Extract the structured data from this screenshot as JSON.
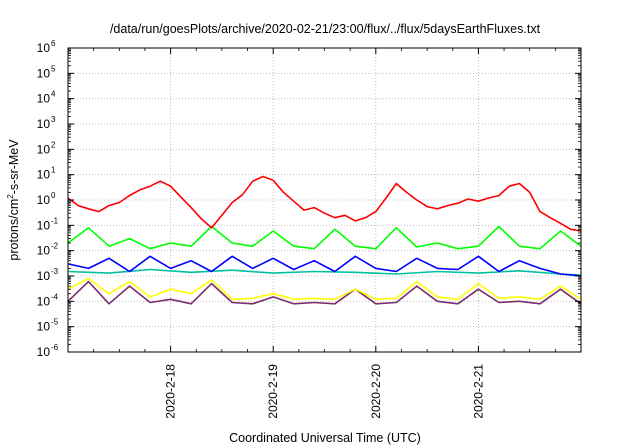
{
  "chart_data": {
    "type": "line",
    "title": "/data/run/goesPlots/archive/2020-02-21/23:00/flux/../flux/5daysEarthFluxes.txt",
    "xlabel": "Coordinated Universal Time (UTC)",
    "ylabel": {
      "prefix": "protons/cm",
      "sup": "2",
      "suffix": "-s-sr-MeV"
    },
    "yscale": "log",
    "ylim": [
      1e-06,
      1000000.0
    ],
    "xlim": [
      "2020-02-17 00:00",
      "2020-02-22 00:00"
    ],
    "grid": true,
    "x_ticks": [
      "2020-2-18",
      "2020-2-19",
      "2020-2-20",
      "2020-2-21"
    ],
    "y_ticks": [
      {
        "base": "10",
        "exp": "-6"
      },
      {
        "base": "10",
        "exp": "-5"
      },
      {
        "base": "10",
        "exp": "-4"
      },
      {
        "base": "10",
        "exp": "-3"
      },
      {
        "base": "10",
        "exp": "-2"
      },
      {
        "base": "10",
        "exp": "-1"
      },
      {
        "base": "10",
        "exp": "0"
      },
      {
        "base": "10",
        "exp": "1"
      },
      {
        "base": "10",
        "exp": "2"
      },
      {
        "base": "10",
        "exp": "3"
      },
      {
        "base": "10",
        "exp": "4"
      },
      {
        "base": "10",
        "exp": "5"
      },
      {
        "base": "10",
        "exp": "6"
      }
    ],
    "series": [
      {
        "color": "#ff0000",
        "x": [
          "2020-02-17 00:00",
          "2020-02-17 02:24",
          "2020-02-17 04:48",
          "2020-02-17 07:12",
          "2020-02-17 09:36",
          "2020-02-17 12:00",
          "2020-02-17 14:24",
          "2020-02-17 16:48",
          "2020-02-17 19:12",
          "2020-02-17 21:36",
          "2020-02-18 00:00",
          "2020-02-18 02:24",
          "2020-02-18 04:48",
          "2020-02-18 07:12",
          "2020-02-18 09:36",
          "2020-02-18 12:00",
          "2020-02-18 14:24",
          "2020-02-18 16:48",
          "2020-02-18 19:12",
          "2020-02-18 21:36",
          "2020-02-19 00:00",
          "2020-02-19 02:24",
          "2020-02-19 04:48",
          "2020-02-19 07:12",
          "2020-02-19 09:36",
          "2020-02-19 12:00",
          "2020-02-19 14:24",
          "2020-02-19 16:48",
          "2020-02-19 19:12",
          "2020-02-19 21:36",
          "2020-02-20 00:00",
          "2020-02-20 02:24",
          "2020-02-20 04:48",
          "2020-02-20 07:12",
          "2020-02-20 09:36",
          "2020-02-20 12:00",
          "2020-02-20 14:24",
          "2020-02-20 16:48",
          "2020-02-20 19:12",
          "2020-02-20 21:36",
          "2020-02-21 00:00",
          "2020-02-21 02:24",
          "2020-02-21 04:48",
          "2020-02-21 07:12",
          "2020-02-21 09:36",
          "2020-02-21 12:00",
          "2020-02-21 14:24",
          "2020-02-21 16:48",
          "2020-02-21 19:12",
          "2020-02-21 21:36",
          "2020-02-22 00:00"
        ],
        "y": [
          1.2,
          0.6,
          0.45,
          0.35,
          0.6,
          0.8,
          1.5,
          2.5,
          3.5,
          5.5,
          3.5,
          1.3,
          0.5,
          0.18,
          0.08,
          0.25,
          0.8,
          1.6,
          5.5,
          8.5,
          6,
          2,
          0.9,
          0.4,
          0.5,
          0.3,
          0.2,
          0.25,
          0.15,
          0.2,
          0.35,
          1.2,
          4.5,
          2,
          1,
          0.55,
          0.45,
          0.6,
          0.75,
          1.1,
          0.9,
          1.2,
          1.5,
          3.5,
          4.5,
          2,
          0.35,
          0.2,
          0.12,
          0.07,
          0.06
        ]
      },
      {
        "color": "#00ff00",
        "x": [
          "2020-02-17 00:00",
          "2020-02-17 04:48",
          "2020-02-17 09:36",
          "2020-02-17 14:24",
          "2020-02-17 19:12",
          "2020-02-18 00:00",
          "2020-02-18 04:48",
          "2020-02-18 09:36",
          "2020-02-18 14:24",
          "2020-02-18 19:12",
          "2020-02-19 00:00",
          "2020-02-19 04:48",
          "2020-02-19 09:36",
          "2020-02-19 14:24",
          "2020-02-19 19:12",
          "2020-02-20 00:00",
          "2020-02-20 04:48",
          "2020-02-20 09:36",
          "2020-02-20 14:24",
          "2020-02-20 19:12",
          "2020-02-21 00:00",
          "2020-02-21 04:48",
          "2020-02-21 09:36",
          "2020-02-21 14:24",
          "2020-02-21 19:12",
          "2020-02-22 00:00"
        ],
        "y": [
          0.02,
          0.08,
          0.015,
          0.03,
          0.012,
          0.02,
          0.015,
          0.09,
          0.02,
          0.015,
          0.06,
          0.015,
          0.012,
          0.07,
          0.015,
          0.012,
          0.08,
          0.014,
          0.02,
          0.012,
          0.015,
          0.09,
          0.015,
          0.012,
          0.06,
          0.015
        ]
      },
      {
        "color": "#0000ff",
        "x": [
          "2020-02-17 00:00",
          "2020-02-17 04:48",
          "2020-02-17 09:36",
          "2020-02-17 14:24",
          "2020-02-17 19:12",
          "2020-02-18 00:00",
          "2020-02-18 04:48",
          "2020-02-18 09:36",
          "2020-02-18 14:24",
          "2020-02-18 19:12",
          "2020-02-19 00:00",
          "2020-02-19 04:48",
          "2020-02-19 09:36",
          "2020-02-19 14:24",
          "2020-02-19 19:12",
          "2020-02-20 00:00",
          "2020-02-20 04:48",
          "2020-02-20 09:36",
          "2020-02-20 14:24",
          "2020-02-20 19:12",
          "2020-02-21 00:00",
          "2020-02-21 04:48",
          "2020-02-21 09:36",
          "2020-02-21 14:24",
          "2020-02-21 19:12",
          "2020-02-22 00:00"
        ],
        "y": [
          0.003,
          0.002,
          0.005,
          0.0015,
          0.006,
          0.002,
          0.004,
          0.0015,
          0.006,
          0.002,
          0.005,
          0.0018,
          0.004,
          0.0015,
          0.006,
          0.002,
          0.0015,
          0.005,
          0.002,
          0.0018,
          0.006,
          0.0015,
          0.004,
          0.002,
          0.0012,
          0.001
        ]
      },
      {
        "color": "#00c0a0",
        "x": [
          "2020-02-17 00:00",
          "2020-02-17 09:36",
          "2020-02-17 19:12",
          "2020-02-18 04:48",
          "2020-02-18 14:24",
          "2020-02-19 00:00",
          "2020-02-19 09:36",
          "2020-02-19 19:12",
          "2020-02-20 04:48",
          "2020-02-20 14:24",
          "2020-02-21 00:00",
          "2020-02-21 09:36",
          "2020-02-21 19:12",
          "2020-02-22 00:00"
        ],
        "y": [
          0.0015,
          0.0013,
          0.0018,
          0.0014,
          0.0017,
          0.0013,
          0.0015,
          0.0014,
          0.0012,
          0.0015,
          0.0013,
          0.0016,
          0.0012,
          0.0011
        ]
      },
      {
        "color": "#ffff00",
        "x": [
          "2020-02-17 00:00",
          "2020-02-17 04:48",
          "2020-02-17 09:36",
          "2020-02-17 14:24",
          "2020-02-17 19:12",
          "2020-02-18 00:00",
          "2020-02-18 04:48",
          "2020-02-18 09:36",
          "2020-02-18 14:24",
          "2020-02-18 19:12",
          "2020-02-19 00:00",
          "2020-02-19 04:48",
          "2020-02-19 09:36",
          "2020-02-19 14:24",
          "2020-02-19 19:12",
          "2020-02-20 00:00",
          "2020-02-20 04:48",
          "2020-02-20 09:36",
          "2020-02-20 14:24",
          "2020-02-20 19:12",
          "2020-02-21 00:00",
          "2020-02-21 04:48",
          "2020-02-21 09:36",
          "2020-02-21 14:24",
          "2020-02-21 19:12",
          "2020-02-22 00:00"
        ],
        "y": [
          0.0003,
          0.0008,
          0.0002,
          0.0006,
          0.00015,
          0.0003,
          0.0002,
          0.0007,
          0.00012,
          0.00013,
          0.0002,
          0.00012,
          0.00013,
          0.00012,
          0.0003,
          0.00012,
          0.00013,
          0.0006,
          0.00015,
          0.00012,
          0.0005,
          0.00013,
          0.00015,
          0.00012,
          0.0004,
          0.00012
        ]
      },
      {
        "color": "#7b2d6e",
        "x": [
          "2020-02-17 00:00",
          "2020-02-17 04:48",
          "2020-02-17 09:36",
          "2020-02-17 14:24",
          "2020-02-17 19:12",
          "2020-02-18 00:00",
          "2020-02-18 04:48",
          "2020-02-18 09:36",
          "2020-02-18 14:24",
          "2020-02-18 19:12",
          "2020-02-19 00:00",
          "2020-02-19 04:48",
          "2020-02-19 09:36",
          "2020-02-19 14:24",
          "2020-02-19 19:12",
          "2020-02-20 00:00",
          "2020-02-20 04:48",
          "2020-02-20 09:36",
          "2020-02-20 14:24",
          "2020-02-20 19:12",
          "2020-02-21 00:00",
          "2020-02-21 04:48",
          "2020-02-21 09:36",
          "2020-02-21 14:24",
          "2020-02-21 19:12",
          "2020-02-22 00:00"
        ],
        "y": [
          0.0001,
          0.0006,
          8e-05,
          0.0004,
          9e-05,
          0.00012,
          8e-05,
          0.0005,
          9e-05,
          8e-05,
          0.00015,
          8e-05,
          9e-05,
          8e-05,
          0.0003,
          8e-05,
          9e-05,
          0.0004,
          0.0001,
          8e-05,
          0.0003,
          9e-05,
          0.0001,
          8e-05,
          0.0003,
          8e-05
        ]
      }
    ]
  }
}
